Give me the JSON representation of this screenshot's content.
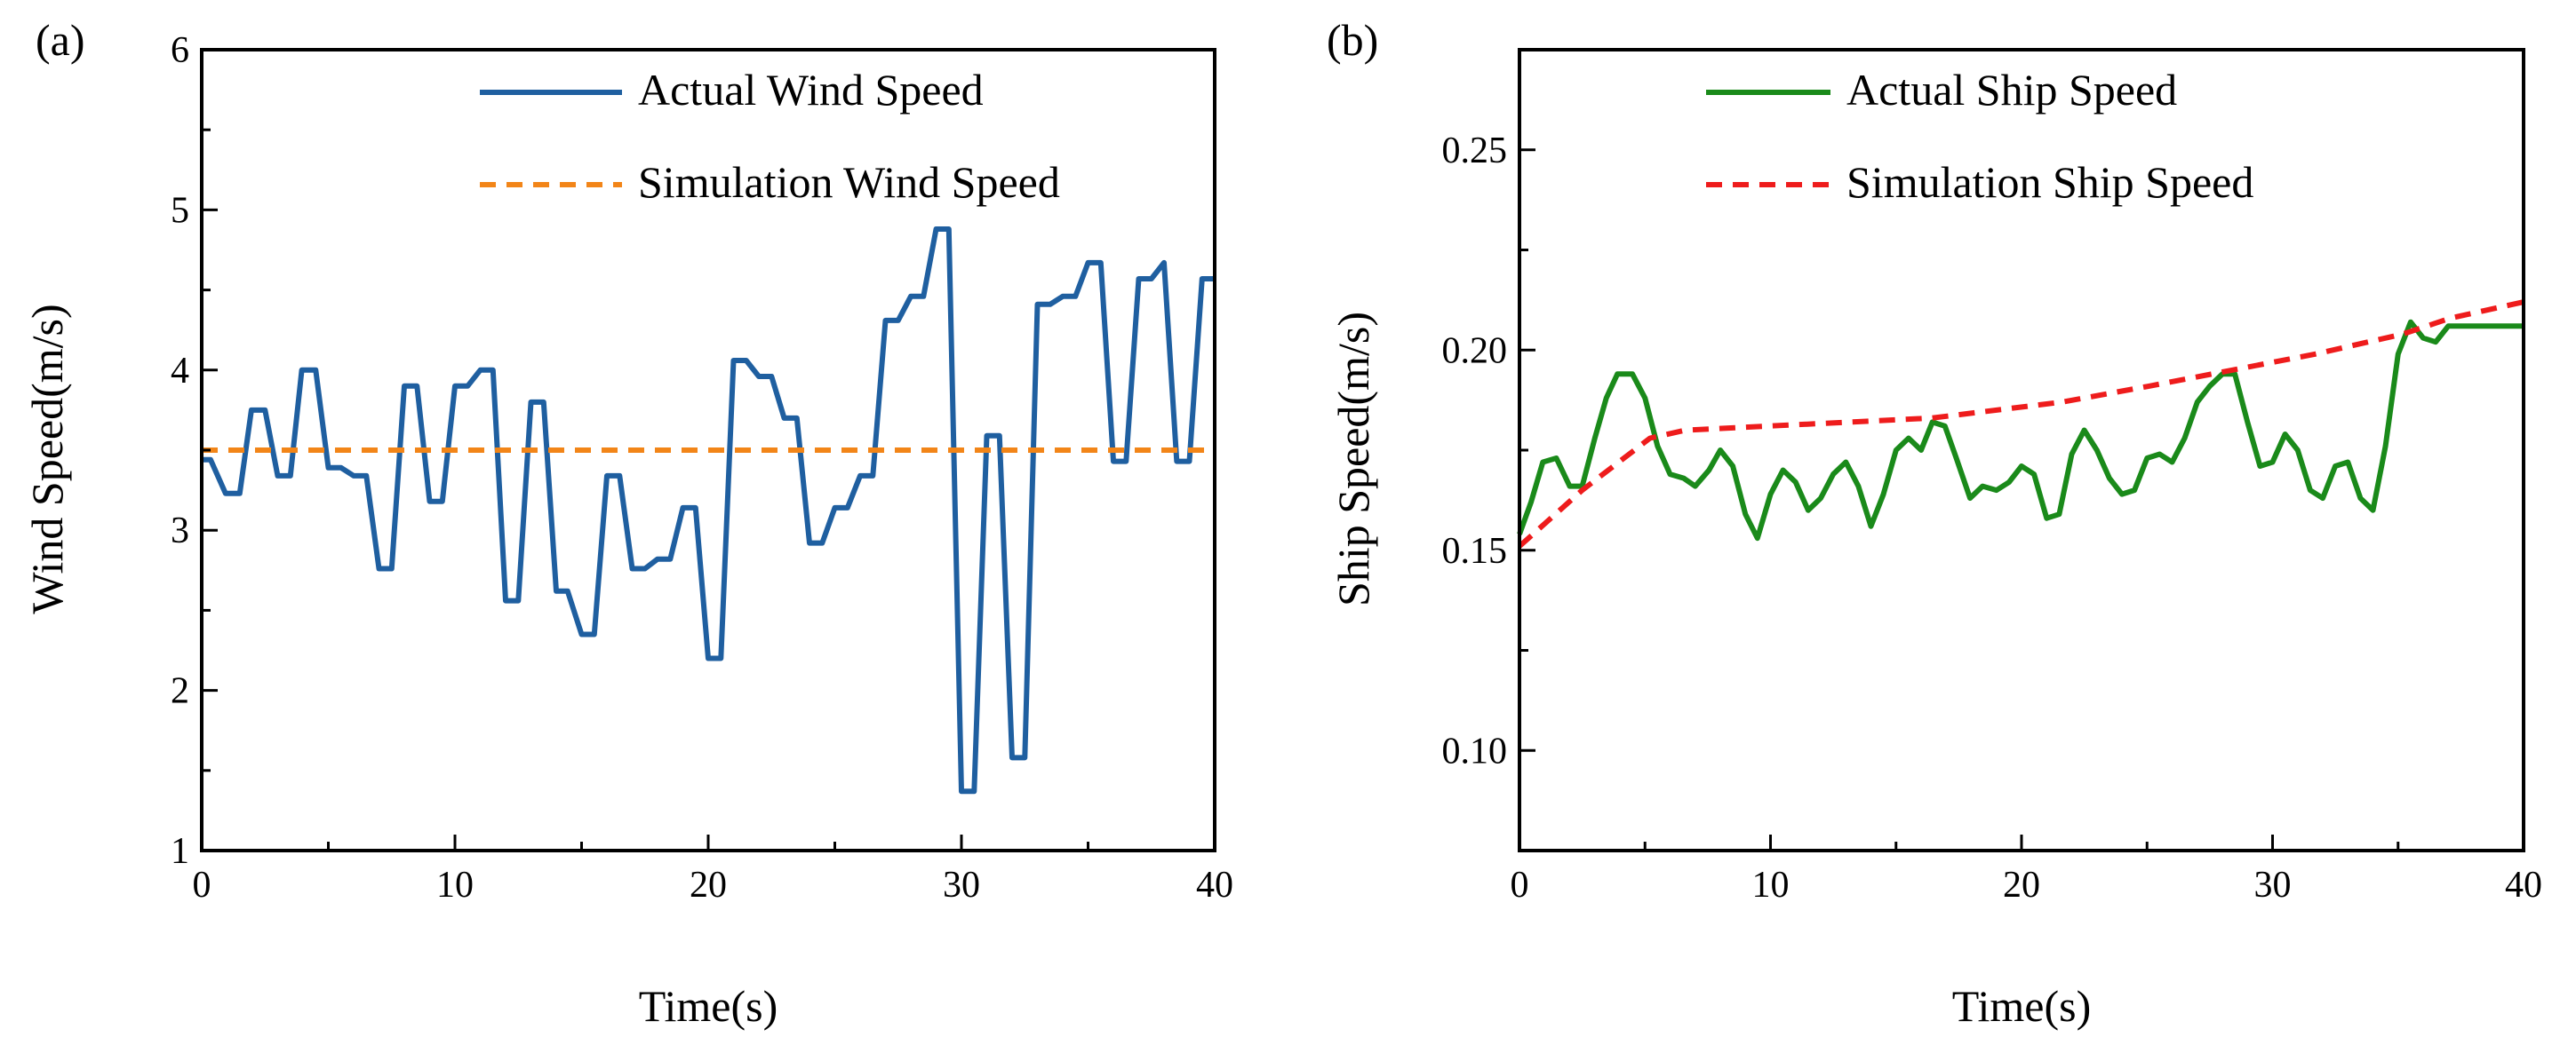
{
  "chart_data": [
    {
      "type": "line",
      "panel_label": "(a)",
      "xlabel": "Time(s)",
      "ylabel": "Wind Speed(m/s)",
      "xlim": [
        0,
        40
      ],
      "ylim": [
        1,
        6
      ],
      "xticks": [
        0,
        10,
        20,
        30,
        40
      ],
      "yticks": [
        1,
        2,
        3,
        4,
        5,
        6
      ],
      "grid": false,
      "legend_position": "top-right",
      "series": [
        {
          "name": "Actual Wind Speed",
          "color": "#1f5fa0",
          "style": "solid",
          "x": [
            0,
            0.35,
            0.94,
            1.5,
            1.96,
            2.5,
            3.0,
            3.5,
            3.95,
            4.5,
            5.0,
            5.5,
            6.0,
            6.5,
            7.0,
            7.5,
            8.0,
            8.5,
            9.0,
            9.5,
            10,
            10.5,
            11,
            11.5,
            12,
            12.5,
            13,
            13.5,
            14,
            14.45,
            15,
            15.5,
            16,
            16.5,
            17,
            17.5,
            18,
            18.5,
            19,
            19.5,
            20,
            20.5,
            21,
            21.5,
            22,
            22.5,
            23,
            23.5,
            24,
            24.5,
            25,
            25.5,
            26,
            26.5,
            27,
            27.5,
            28,
            28.5,
            29,
            29.5,
            30,
            30.5,
            31,
            31.5,
            32,
            32.5,
            33,
            33.5,
            34,
            34.5,
            35,
            35.5,
            36,
            36.5,
            37,
            37.5,
            38,
            38.5,
            39,
            39.5,
            40
          ],
          "y": [
            3.44,
            3.44,
            3.23,
            3.23,
            3.75,
            3.75,
            3.34,
            3.34,
            4.0,
            4.0,
            3.39,
            3.39,
            3.34,
            3.34,
            2.76,
            2.76,
            3.9,
            3.9,
            3.18,
            3.18,
            3.9,
            3.9,
            4.0,
            4.0,
            2.56,
            2.56,
            3.8,
            3.8,
            2.62,
            2.62,
            2.35,
            2.35,
            3.34,
            3.34,
            2.76,
            2.76,
            2.82,
            2.82,
            3.14,
            3.14,
            2.2,
            2.2,
            4.06,
            4.06,
            3.96,
            3.96,
            3.7,
            3.7,
            2.92,
            2.92,
            3.14,
            3.14,
            3.34,
            3.34,
            4.31,
            4.31,
            4.46,
            4.46,
            4.88,
            4.88,
            1.37,
            1.37,
            3.59,
            3.59,
            1.58,
            1.58,
            4.41,
            4.41,
            4.46,
            4.46,
            4.67,
            4.67,
            3.43,
            3.43,
            4.57,
            4.57,
            4.67,
            3.43,
            3.43,
            4.57,
            4.57
          ]
        },
        {
          "name": "Simulation Wind Speed",
          "color": "#f28518",
          "style": "dashed",
          "x": [
            0,
            40
          ],
          "y": [
            3.5,
            3.5
          ]
        }
      ]
    },
    {
      "type": "line",
      "panel_label": "(b)",
      "xlabel": "Time(s)",
      "ylabel": "Ship Speed(m/s)",
      "xlim": [
        0,
        40
      ],
      "ylim": [
        0.075,
        0.275
      ],
      "xticks": [
        0,
        10,
        20,
        30,
        40
      ],
      "yticks": [
        "0.10",
        "0.15",
        "0.20",
        "0.25"
      ],
      "grid": false,
      "legend_position": "top-right",
      "series": [
        {
          "name": "Actual Ship Speed",
          "color": "#1a8a1a",
          "style": "solid",
          "x": [
            0,
            0.46,
            0.93,
            1.47,
            2.0,
            2.5,
            3.0,
            3.46,
            3.9,
            4.5,
            5.0,
            5.5,
            6.0,
            6.54,
            7.0,
            7.55,
            8.0,
            8.5,
            9.0,
            9.48,
            10,
            10.5,
            11,
            11.5,
            12,
            12.5,
            13,
            13.5,
            14,
            14.5,
            15,
            15.5,
            16,
            16.45,
            16.95,
            17.4,
            17.95,
            18.45,
            19,
            19.5,
            20,
            20.5,
            21,
            21.5,
            22,
            22.5,
            23,
            23.5,
            24,
            24.5,
            25,
            25.5,
            26,
            26.5,
            27,
            27.5,
            28,
            28.5,
            29,
            29.5,
            30,
            30.5,
            31,
            31.5,
            32,
            32.5,
            33,
            33.5,
            34,
            34.5,
            35,
            35.5,
            36,
            36.5,
            37,
            40
          ],
          "y": [
            0.154,
            0.162,
            0.172,
            0.173,
            0.166,
            0.166,
            0.178,
            0.188,
            0.194,
            0.194,
            0.188,
            0.176,
            0.169,
            0.168,
            0.166,
            0.17,
            0.175,
            0.171,
            0.159,
            0.153,
            0.164,
            0.17,
            0.167,
            0.16,
            0.163,
            0.169,
            0.172,
            0.166,
            0.156,
            0.164,
            0.175,
            0.178,
            0.175,
            0.182,
            0.181,
            0.173,
            0.163,
            0.166,
            0.165,
            0.167,
            0.171,
            0.169,
            0.158,
            0.159,
            0.174,
            0.18,
            0.175,
            0.168,
            0.164,
            0.165,
            0.173,
            0.174,
            0.172,
            0.178,
            0.187,
            0.191,
            0.194,
            0.194,
            0.182,
            0.171,
            0.172,
            0.179,
            0.175,
            0.165,
            0.163,
            0.171,
            0.172,
            0.163,
            0.16,
            0.176,
            0.199,
            0.207,
            0.203,
            0.202,
            0.206,
            0.206
          ]
        },
        {
          "name": "Simulation Ship Speed",
          "color": "#ee1c1c",
          "style": "dashed",
          "x": [
            0,
            2.5,
            5.2,
            6.6,
            9.9,
            16.4,
            21.6,
            25.1,
            28.4,
            31.7,
            35.2,
            37.1,
            40
          ],
          "y": [
            0.151,
            0.165,
            0.178,
            0.18,
            0.181,
            0.183,
            0.187,
            0.191,
            0.195,
            0.199,
            0.204,
            0.208,
            0.212
          ]
        }
      ]
    }
  ]
}
